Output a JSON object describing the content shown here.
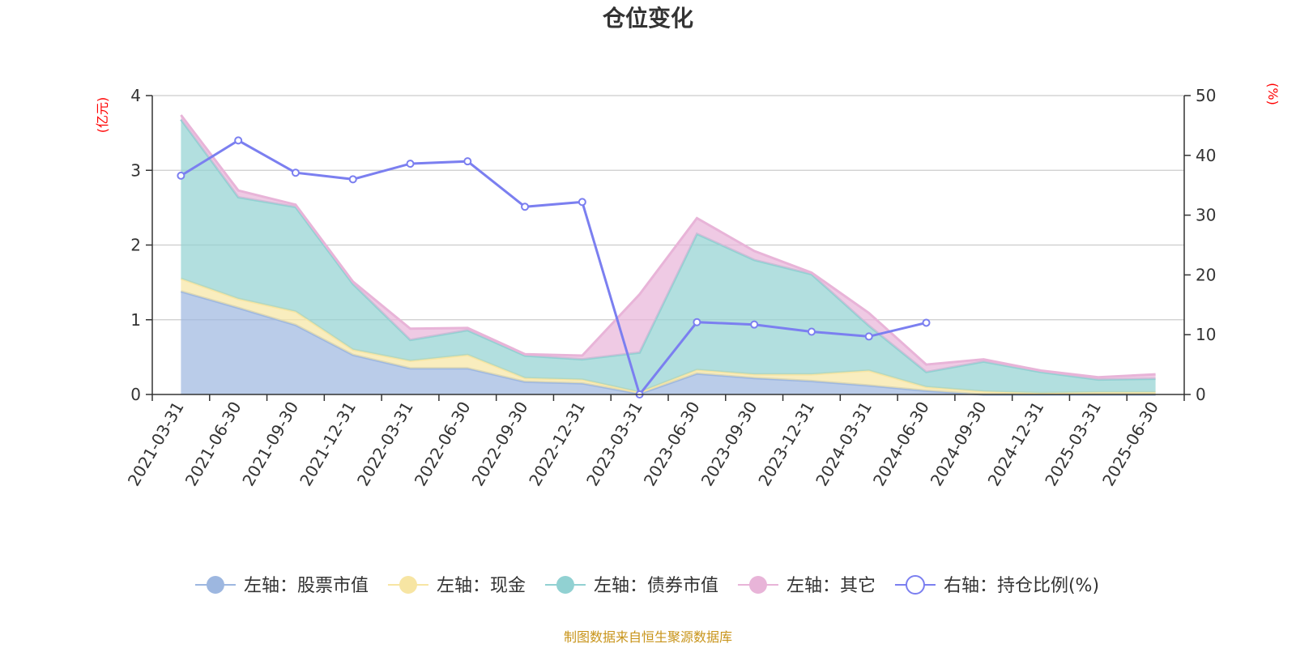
{
  "chart_data": {
    "type": "area",
    "title": "仓位变化",
    "x": [
      "2021-03-31",
      "2021-06-30",
      "2021-09-30",
      "2021-12-31",
      "2022-03-31",
      "2022-06-30",
      "2022-09-30",
      "2022-12-31",
      "2023-03-31",
      "2023-06-30",
      "2023-09-30",
      "2023-12-31",
      "2024-03-31",
      "2024-06-30",
      "2024-09-30",
      "2024-12-31",
      "2025-03-31",
      "2025-06-30"
    ],
    "left_axis": {
      "unit": "(亿元)",
      "ylim": [
        0,
        4
      ],
      "ticks": [
        "0",
        "1",
        "2",
        "3",
        "4"
      ]
    },
    "right_axis": {
      "unit": "(%)",
      "ylim": [
        0,
        50
      ],
      "ticks": [
        "0",
        "10",
        "20",
        "30",
        "40",
        "50"
      ]
    },
    "stacked": true,
    "series": [
      {
        "name": "左轴：股票市值",
        "axis": "left",
        "type": "area",
        "color": "#9db7e0",
        "values": [
          1.38,
          1.16,
          0.93,
          0.53,
          0.35,
          0.35,
          0.17,
          0.15,
          0.01,
          0.28,
          0.22,
          0.18,
          0.12,
          0.05,
          0.0,
          0.0,
          0.0,
          0.0
        ]
      },
      {
        "name": "左轴：现金",
        "axis": "left",
        "type": "area",
        "color": "#f7e5a3",
        "values": [
          0.17,
          0.12,
          0.18,
          0.07,
          0.1,
          0.18,
          0.05,
          0.05,
          0.02,
          0.05,
          0.05,
          0.09,
          0.2,
          0.05,
          0.04,
          0.02,
          0.03,
          0.03
        ]
      },
      {
        "name": "左轴：债券市值",
        "axis": "left",
        "type": "area",
        "color": "#91d1d2",
        "values": [
          2.13,
          1.36,
          1.4,
          0.88,
          0.28,
          0.33,
          0.3,
          0.27,
          0.53,
          1.82,
          1.53,
          1.34,
          0.6,
          0.2,
          0.4,
          0.28,
          0.17,
          0.18
        ]
      },
      {
        "name": "左轴：其它",
        "axis": "left",
        "type": "area",
        "color": "#e8b4d8",
        "values": [
          0.06,
          0.09,
          0.03,
          0.03,
          0.15,
          0.03,
          0.02,
          0.05,
          0.78,
          0.21,
          0.12,
          0.02,
          0.17,
          0.1,
          0.03,
          0.02,
          0.03,
          0.06
        ]
      },
      {
        "name": "右轴：持仓比例(%)",
        "axis": "right",
        "type": "line",
        "color": "#7b7ff0",
        "values": [
          36.6,
          42.5,
          37.1,
          36.0,
          38.6,
          39.0,
          31.4,
          32.2,
          0.0,
          12.1,
          11.7,
          10.5,
          9.7,
          12.0,
          null,
          null,
          null,
          null
        ]
      }
    ],
    "legend_position": "bottom-center",
    "grid": true
  },
  "footer": {
    "source": "制图数据来自恒生聚源数据库"
  }
}
